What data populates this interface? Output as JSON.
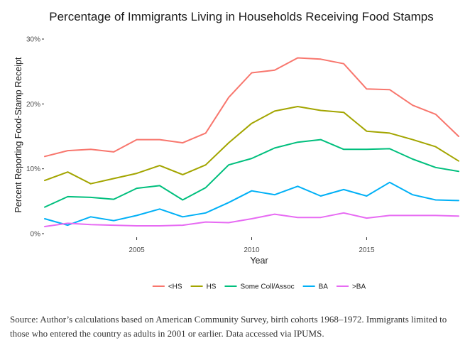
{
  "chart_data": {
    "type": "line",
    "title": "Percentage of Immigrants Living in Households Receiving Food Stamps",
    "xlabel": "Year",
    "ylabel": "Percent Reporting Food-Stamp Receipt",
    "xlim": [
      2001,
      2019
    ],
    "ylim": [
      0,
      30
    ],
    "x_ticks": [
      2005,
      2010,
      2015
    ],
    "y_ticks": [
      0,
      10,
      20,
      30
    ],
    "y_tick_labels": [
      "0%",
      "10%",
      "20%",
      "30%"
    ],
    "grid": false,
    "legend_position": "bottom",
    "x": [
      2001,
      2002,
      2003,
      2004,
      2005,
      2006,
      2007,
      2008,
      2009,
      2010,
      2011,
      2012,
      2013,
      2014,
      2015,
      2016,
      2017,
      2018,
      2019
    ],
    "series": [
      {
        "name": "<HS",
        "color": "#F8766D",
        "values": [
          11.9,
          12.8,
          13.0,
          12.6,
          14.5,
          14.5,
          14.0,
          15.5,
          21.0,
          24.8,
          25.2,
          27.1,
          26.9,
          26.2,
          22.3,
          22.2,
          19.8,
          18.4,
          15.0
        ]
      },
      {
        "name": "HS",
        "color": "#A3A500",
        "values": [
          8.2,
          9.5,
          7.7,
          8.5,
          9.3,
          10.5,
          9.1,
          10.6,
          14.0,
          17.0,
          18.9,
          19.6,
          19.0,
          18.7,
          15.8,
          15.5,
          14.5,
          13.4,
          11.2
        ]
      },
      {
        "name": "Some Coll/Assoc",
        "color": "#00BF7D",
        "values": [
          4.1,
          5.7,
          5.6,
          5.3,
          7.0,
          7.4,
          5.2,
          7.1,
          10.6,
          11.6,
          13.2,
          14.1,
          14.5,
          13.0,
          13.0,
          13.1,
          11.5,
          10.2,
          9.6
        ]
      },
      {
        "name": "BA",
        "color": "#00B0F6",
        "values": [
          2.3,
          1.3,
          2.6,
          2.0,
          2.8,
          3.8,
          2.6,
          3.2,
          4.8,
          6.6,
          6.0,
          7.3,
          5.8,
          6.8,
          5.8,
          7.9,
          6.0,
          5.2,
          5.1
        ]
      },
      {
        "name": ">BA",
        "color": "#E76BF3",
        "values": [
          1.1,
          1.6,
          1.4,
          1.3,
          1.2,
          1.2,
          1.3,
          1.8,
          1.7,
          2.3,
          3.0,
          2.5,
          2.5,
          3.2,
          2.4,
          2.8,
          2.8,
          2.8,
          2.7
        ]
      }
    ]
  },
  "caption": "Source: Author’s calculations based on American Community Survey, birth cohorts 1968–1972. Immigrants limited to those who entered the country as adults in 2001 or earlier. Data accessed via IPUMS."
}
